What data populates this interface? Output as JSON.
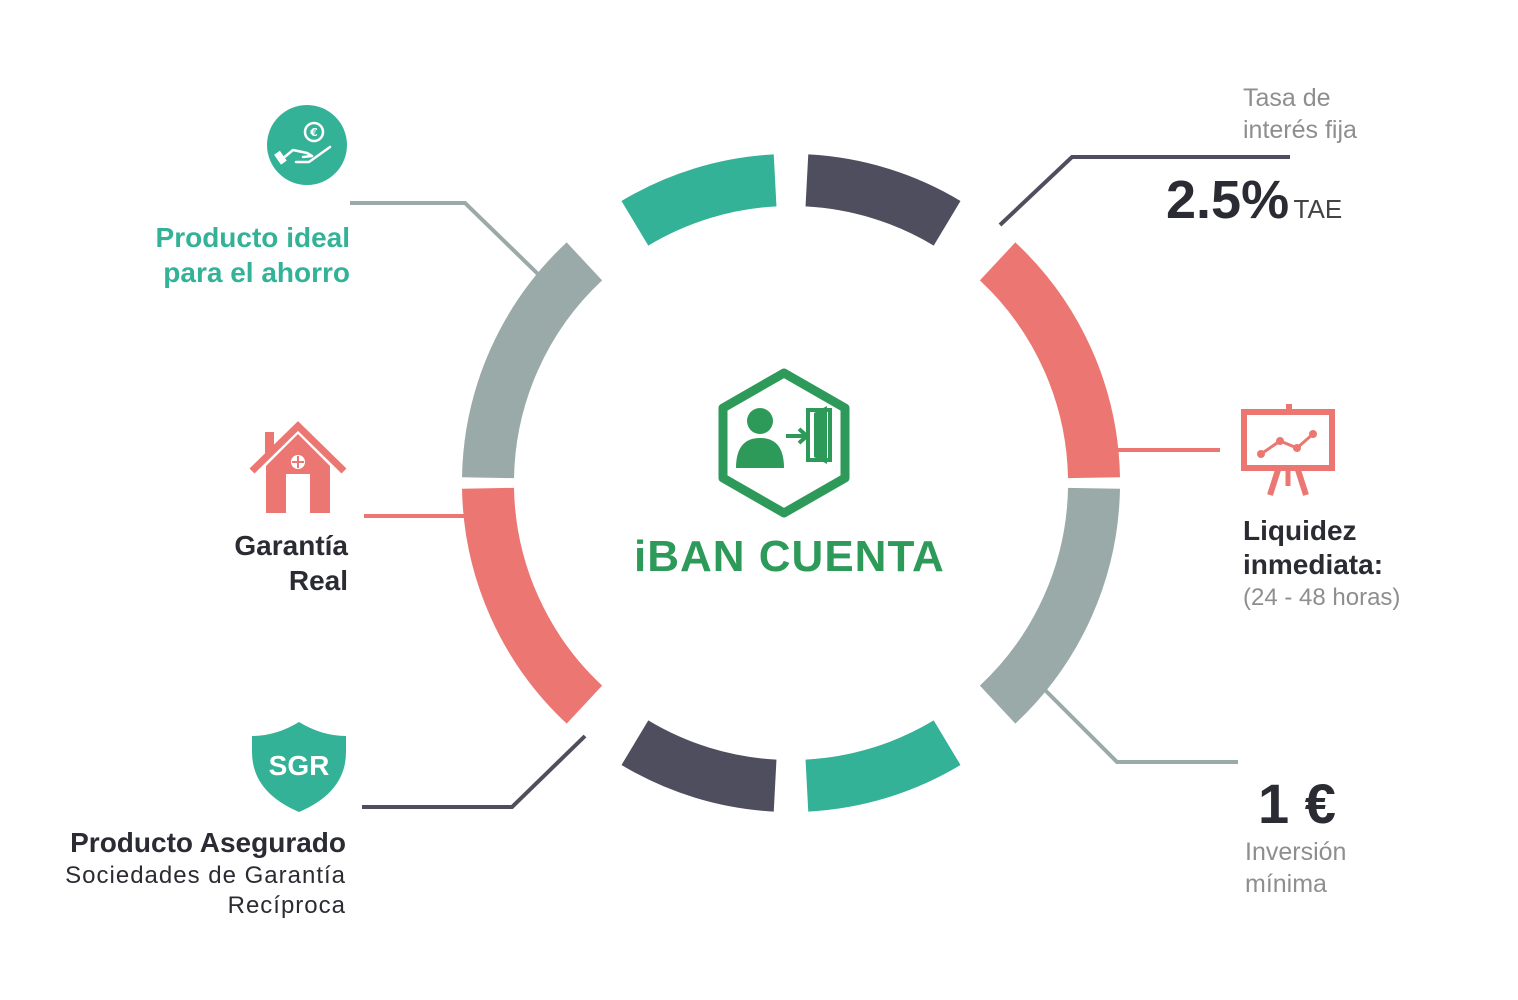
{
  "center": {
    "title": "iBAN CUENTA"
  },
  "colors": {
    "teal": "#33b297",
    "slate": "#4f4e5f",
    "coral": "#ec7672",
    "grey": "#9aaaa8",
    "brand_green": "#2e9a5a"
  },
  "icons": [
    "euro-hand-icon",
    "house-icon",
    "shield-icon",
    "presentation-chart-icon",
    "user-exit-icon"
  ],
  "ahorro": {
    "line1": "Producto ideal",
    "line2": "para el ahorro"
  },
  "garantia": {
    "line1": "Garantía",
    "line2": "Real"
  },
  "asegurado": {
    "shield_label": "SGR",
    "title": "Producto Asegurado",
    "sub1": "Sociedades de Garantía",
    "sub2": "Recíproca"
  },
  "tasa": {
    "label1": "Tasa de",
    "label2": "interés fija",
    "value": "2.5%",
    "unit": "TAE"
  },
  "liquidez": {
    "line1": "Liquidez",
    "line2": "inmediata:",
    "line3": "(24 - 48 horas)"
  },
  "inversion": {
    "value": "1 €",
    "label1": "Inversión",
    "label2": "mínima"
  }
}
